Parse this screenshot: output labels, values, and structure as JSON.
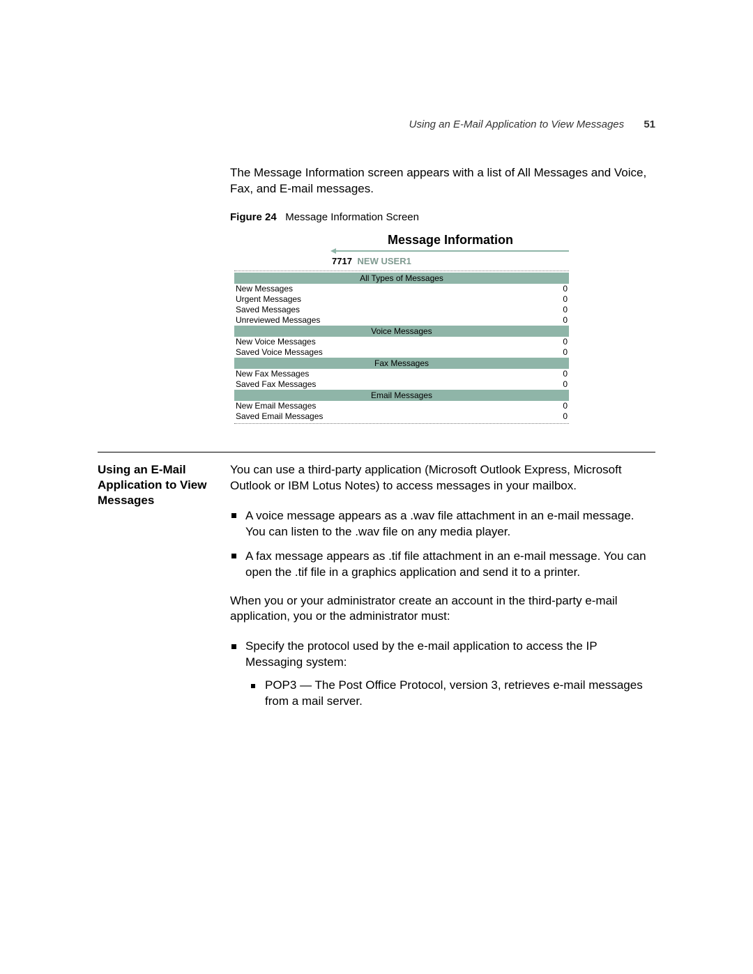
{
  "header": {
    "running_title": "Using an E-Mail Application to View Messages",
    "page_number": "51"
  },
  "intro_paragraph": "The Message Information screen appears with a list of All Messages and Voice, Fax, and E-mail messages.",
  "figure": {
    "label": "Figure 24",
    "caption": "Message Information Screen"
  },
  "screenshot": {
    "title": "Message Information",
    "user_id": "7717",
    "user_name": "NEW USER1",
    "colors": {
      "band": "#8fb5a8",
      "rule": "#8fb5a8",
      "user_name_color": "#7f9a90",
      "dotted": "#777777",
      "background": "#ffffff"
    },
    "sections": [
      {
        "heading": "All Types of Messages",
        "rows": [
          {
            "label": "New Messages",
            "value": "0"
          },
          {
            "label": "Urgent Messages",
            "value": "0"
          },
          {
            "label": "Saved Messages",
            "value": "0"
          },
          {
            "label": "Unreviewed Messages",
            "value": "0"
          }
        ]
      },
      {
        "heading": "Voice Messages",
        "rows": [
          {
            "label": "New Voice Messages",
            "value": "0"
          },
          {
            "label": "Saved Voice Messages",
            "value": "0"
          }
        ]
      },
      {
        "heading": "Fax Messages",
        "rows": [
          {
            "label": "New Fax Messages",
            "value": "0"
          },
          {
            "label": "Saved Fax Messages",
            "value": "0"
          }
        ]
      },
      {
        "heading": "Email Messages",
        "rows": [
          {
            "label": "New Email Messages",
            "value": "0"
          },
          {
            "label": "Saved Email Messages",
            "value": "0"
          }
        ]
      }
    ]
  },
  "section": {
    "heading": "Using an E-Mail Application to View Messages",
    "para1": "You can use a third-party application (Microsoft Outlook Express, Microsoft Outlook or IBM Lotus Notes) to access messages in your mailbox.",
    "bullets1": [
      "A voice message appears as a .wav file attachment in an e-mail message. You can listen to the .wav file on any media player.",
      "A fax message appears as .tif file attachment in an e-mail message. You can open the .tif file in a graphics application and send it to a printer."
    ],
    "para2": "When you or your administrator create an account in the third-party e-mail application, you or the administrator must:",
    "bullets2": [
      {
        "text": "Specify the protocol used by the e-mail application to access the IP Messaging system:",
        "sub": [
          "POP3 — The Post Office Protocol, version 3, retrieves e-mail messages from a mail server."
        ]
      }
    ]
  }
}
